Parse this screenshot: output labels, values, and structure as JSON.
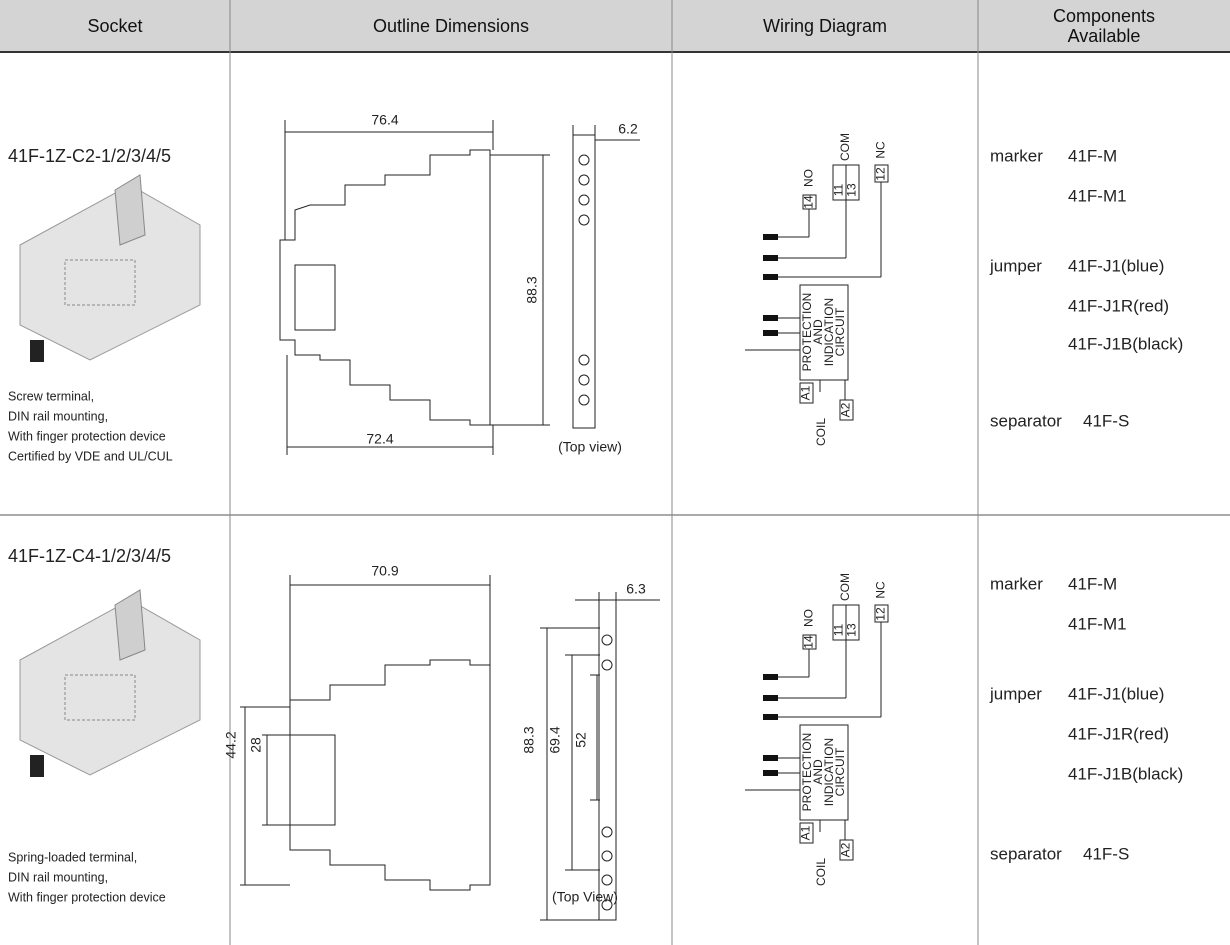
{
  "table": {
    "headers": [
      "Socket",
      "Outline Dimensions",
      "Wiring Diagram",
      "Components",
      "Available"
    ],
    "rows": [
      {
        "model": "41F-1Z-C2-1/2/3/4/5",
        "description": [
          "Screw terminal,",
          "DIN rail mounting,",
          "With finger protection device",
          "Certified by VDE and UL/CUL"
        ],
        "outline": {
          "dimensions": [
            "76.4",
            "72.4",
            "88.3",
            "6.2"
          ],
          "view": "(Top view)"
        },
        "wiring": {
          "terminals": [
            "14",
            "11",
            "13",
            "12",
            "A1",
            "A2"
          ],
          "contacts": [
            "NO",
            "COM",
            "NC"
          ],
          "circuit": [
            "PROTECTION",
            "AND",
            "INDICATION",
            "CIRCUIT"
          ],
          "coil": "COIL"
        },
        "components": [
          {
            "name": "marker",
            "items": [
              "41F-M",
              "41F-M1"
            ]
          },
          {
            "name": "jumper",
            "items": [
              "41F-J1(blue)",
              "41F-J1R(red)",
              "41F-J1B(black)"
            ]
          },
          {
            "name": "separator",
            "items": [
              "41F-S"
            ]
          }
        ]
      },
      {
        "model": "41F-1Z-C4-1/2/3/4/5",
        "description": [
          "Spring-loaded terminal,",
          "DIN rail mounting,",
          "With finger protection device"
        ],
        "outline": {
          "dimensions": [
            "70.9",
            "44.2",
            "28",
            "88.3",
            "69.4",
            "52",
            "6.3"
          ],
          "view": "(Top View)"
        },
        "wiring": {
          "terminals": [
            "14",
            "11",
            "13",
            "12",
            "A1",
            "A2"
          ],
          "contacts": [
            "NO",
            "COM",
            "NC"
          ],
          "circuit": [
            "PROTECTION",
            "AND",
            "INDICATION",
            "CIRCUIT"
          ],
          "coil": "COIL"
        },
        "components": [
          {
            "name": "marker",
            "items": [
              "41F-M",
              "41F-M1"
            ]
          },
          {
            "name": "jumper",
            "items": [
              "41F-J1(blue)",
              "41F-J1R(red)",
              "41F-J1B(black)"
            ]
          },
          {
            "name": "separator",
            "items": [
              "41F-S"
            ]
          }
        ]
      }
    ]
  }
}
